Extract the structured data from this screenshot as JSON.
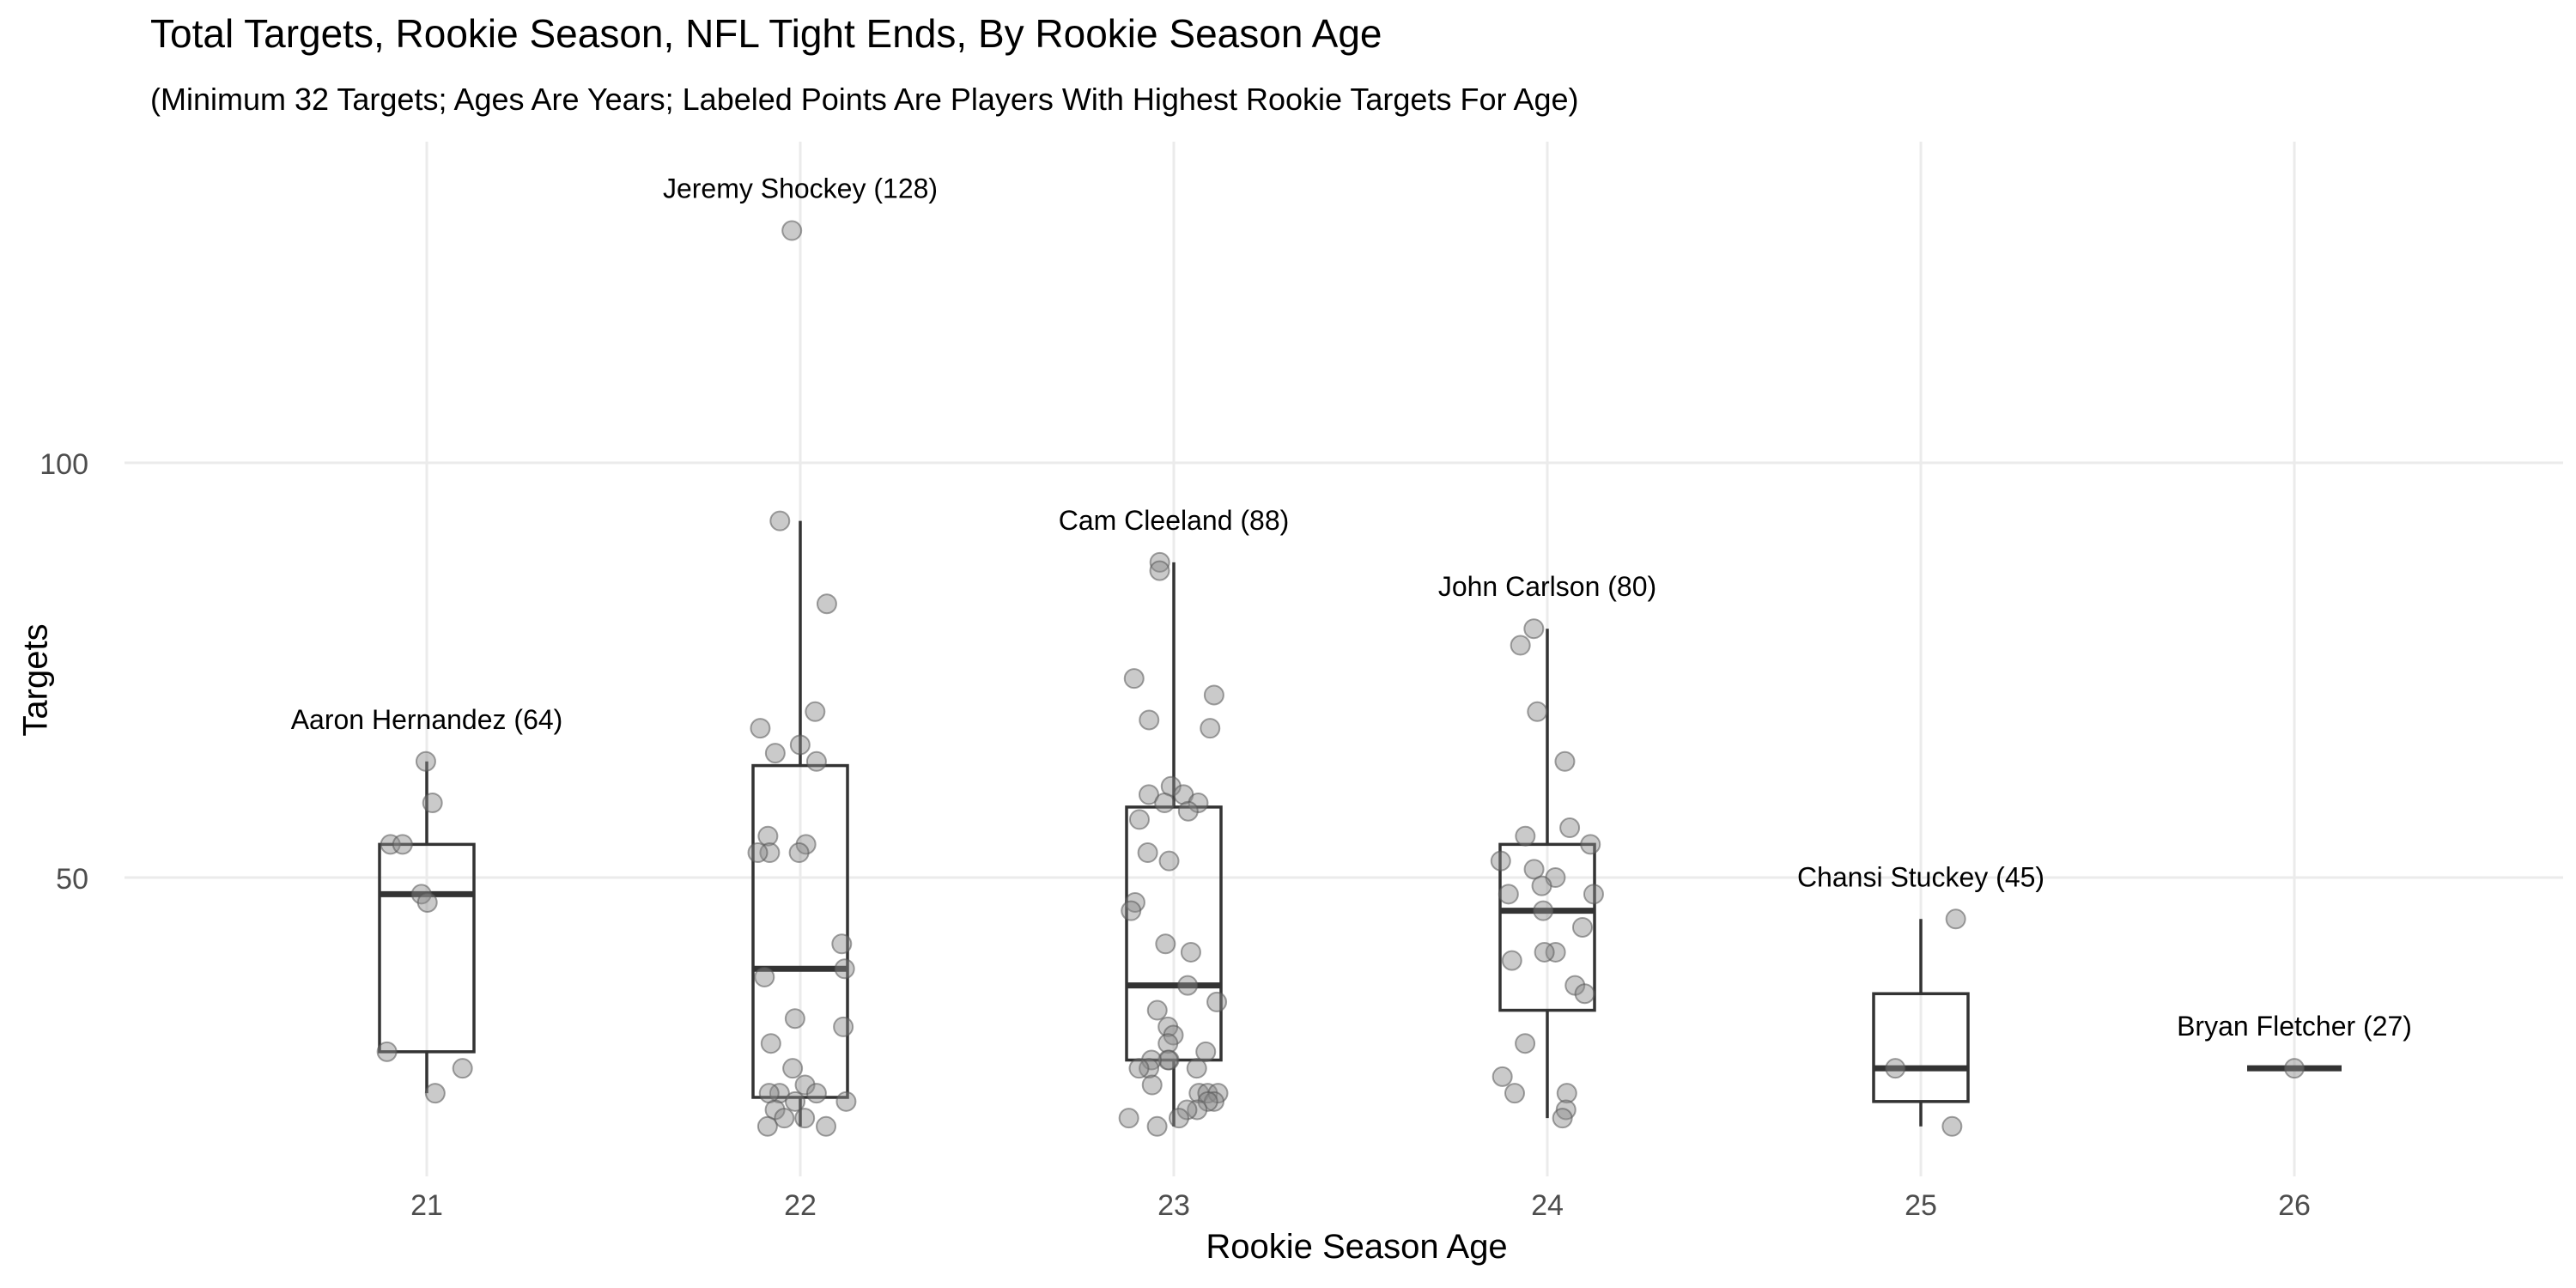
{
  "chart_data": {
    "type": "boxplot",
    "title": "Total Targets, Rookie Season, NFL Tight Ends, By Rookie Season Age",
    "subtitle": "(Minimum 32 Targets; Ages Are Years; Labeled Points Are Players With Highest Rookie Targets For Age)",
    "xlabel": "Rookie Season Age",
    "ylabel": "Targets",
    "categories": [
      "21",
      "22",
      "23",
      "24",
      "25",
      "26"
    ],
    "ylim": [
      15,
      133
    ],
    "yticks": [
      50,
      100
    ],
    "grid": true,
    "boxes": [
      {
        "category": "21",
        "min": 24,
        "q1": 29,
        "median": 48,
        "q3": 54,
        "max": 64
      },
      {
        "category": "22",
        "min": 20,
        "q1": 23.5,
        "median": 39,
        "q3": 63.5,
        "max": 93
      },
      {
        "category": "23",
        "min": 20,
        "q1": 28,
        "median": 37,
        "q3": 58.5,
        "max": 88
      },
      {
        "category": "24",
        "min": 21,
        "q1": 34,
        "median": 46,
        "q3": 54,
        "max": 80
      },
      {
        "category": "25",
        "min": 20,
        "q1": 23,
        "median": 27,
        "q3": 36,
        "max": 45
      },
      {
        "category": "26",
        "min": 27,
        "q1": 27,
        "median": 27,
        "q3": 27,
        "max": 27
      }
    ],
    "points": [
      {
        "x": "21",
        "y": [
          64,
          59,
          54,
          54,
          48,
          47,
          29,
          27,
          24
        ]
      },
      {
        "x": "22",
        "y": [
          128,
          93,
          83,
          70,
          68,
          66,
          65,
          64,
          55,
          54,
          53,
          53,
          53,
          42,
          39,
          38,
          33,
          32,
          30,
          27,
          25,
          24,
          24,
          24,
          23,
          23,
          22,
          21,
          21,
          20,
          20
        ]
      },
      {
        "x": "23",
        "y": [
          88,
          87,
          74,
          72,
          69,
          68,
          61,
          60,
          60,
          59,
          59,
          58,
          57,
          53,
          52,
          47,
          46,
          42,
          41,
          37,
          35,
          34,
          32,
          31,
          30,
          29,
          28,
          28,
          28,
          27,
          27,
          27,
          25,
          24,
          24,
          24,
          23,
          23,
          22,
          22,
          21,
          21,
          20
        ]
      },
      {
        "x": "24",
        "y": [
          80,
          78,
          70,
          64,
          56,
          55,
          54,
          52,
          51,
          50,
          49,
          48,
          48,
          46,
          44,
          41,
          41,
          40,
          37,
          36,
          30,
          26,
          24,
          24,
          22,
          21
        ]
      },
      {
        "x": "25",
        "y": [
          45,
          27,
          20
        ]
      },
      {
        "x": "26",
        "y": [
          27
        ]
      }
    ],
    "annotations": [
      {
        "x": "21",
        "y": 64,
        "text": "Aaron Hernandez (64)"
      },
      {
        "x": "22",
        "y": 128,
        "text": "Jeremy Shockey (128)"
      },
      {
        "x": "23",
        "y": 88,
        "text": "Cam Cleeland (88)"
      },
      {
        "x": "24",
        "y": 80,
        "text": "John Carlson (80)"
      },
      {
        "x": "25",
        "y": 45,
        "text": "Chansi Stuckey (45)"
      },
      {
        "x": "26",
        "y": 27,
        "text": "Bryan Fletcher (27)"
      }
    ],
    "colors": {
      "grid": "#ebebeb",
      "box": "#333333",
      "point": "#8a8a8a",
      "tick_label": "#4d4d4d"
    }
  }
}
